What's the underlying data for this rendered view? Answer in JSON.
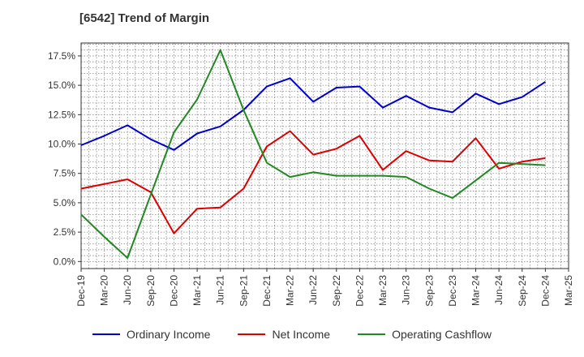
{
  "chart_data": {
    "type": "line",
    "title": "[6542]  Trend of Margin",
    "x": [
      "Dec-19",
      "Mar-20",
      "Jun-20",
      "Sep-20",
      "Dec-20",
      "Mar-21",
      "Jun-21",
      "Sep-21",
      "Dec-21",
      "Mar-22",
      "Jun-22",
      "Sep-22",
      "Dec-22",
      "Mar-23",
      "Jun-23",
      "Sep-23",
      "Dec-23",
      "Mar-24",
      "Jun-24",
      "Sep-24",
      "Dec-24",
      "Mar-25"
    ],
    "ylim": [
      -0.6,
      18.6
    ],
    "yticks": [
      "0.0%",
      "2.5%",
      "5.0%",
      "7.5%",
      "10.0%",
      "12.5%",
      "15.0%",
      "17.5%"
    ],
    "ytick_values": [
      0,
      2.5,
      5.0,
      7.5,
      10.0,
      12.5,
      15.0,
      17.5
    ],
    "grid": true,
    "legend_position": "bottom",
    "series": [
      {
        "name": "Ordinary Income",
        "color": "#0000cc",
        "values": [
          9.9,
          10.7,
          11.6,
          10.4,
          9.5,
          10.9,
          11.5,
          12.9,
          14.9,
          15.6,
          13.6,
          14.8,
          14.9,
          13.1,
          14.1,
          13.1,
          12.7,
          14.3,
          13.4,
          14.0,
          15.3,
          null
        ]
      },
      {
        "name": "Net Income",
        "color": "#dd0000",
        "values": [
          6.2,
          6.6,
          7.0,
          5.9,
          2.4,
          4.5,
          4.6,
          6.2,
          9.8,
          11.1,
          9.1,
          9.6,
          10.7,
          7.8,
          9.4,
          8.6,
          8.5,
          10.5,
          7.9,
          8.5,
          8.8,
          null
        ]
      },
      {
        "name": "Operating Cashflow",
        "color": "#228822",
        "values": [
          4.0,
          2.1,
          0.3,
          5.7,
          11.0,
          13.8,
          18.0,
          12.9,
          8.4,
          7.2,
          7.6,
          7.3,
          7.3,
          7.3,
          7.2,
          6.2,
          5.4,
          6.9,
          8.4,
          8.3,
          8.2,
          null
        ]
      }
    ]
  }
}
